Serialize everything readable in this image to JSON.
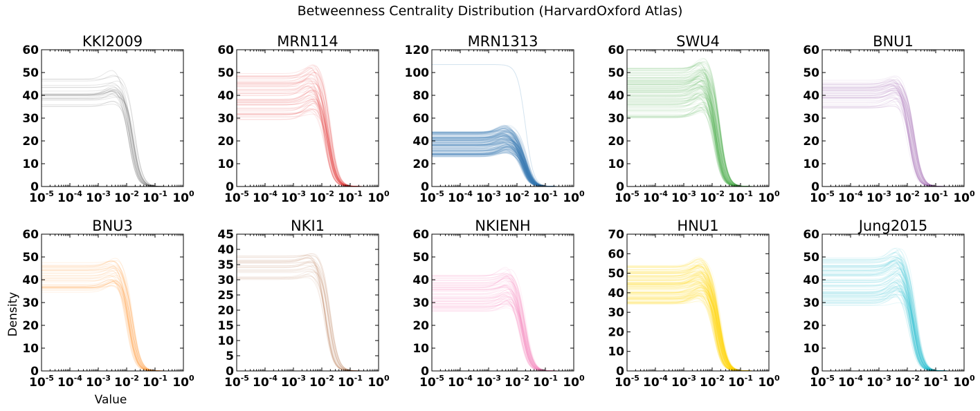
{
  "suptitle": "Betweenness Centrality Distribution (HarvardOxford Atlas)",
  "ylabel": "Density",
  "xlabel": "Value",
  "chart_data": [
    {
      "type": "line",
      "title": "KKI2009",
      "color": "#333333",
      "ylim": [
        0,
        60
      ],
      "yticks": [
        0,
        10,
        20,
        30,
        40,
        50,
        60
      ],
      "xscale": "log",
      "xlim": [
        1e-05,
        1
      ],
      "xtick_labels": [
        "10",
        "10",
        "10",
        "10",
        "10",
        "10"
      ],
      "xtick_exponents": [
        "-5",
        "-4",
        "-3",
        "-2",
        "-1",
        "0"
      ],
      "series_count": 24,
      "plateau_range": [
        34,
        48
      ],
      "peak_x": 0.004,
      "drop_x": 0.015,
      "opacity": 0.12,
      "outliers": []
    },
    {
      "type": "line",
      "title": "MRN114",
      "color": "#e41a1c",
      "ylim": [
        0,
        60
      ],
      "yticks": [
        0,
        10,
        20,
        30,
        40,
        50,
        60
      ],
      "xscale": "log",
      "xlim": [
        1e-05,
        1
      ],
      "xtick_labels": [
        "10",
        "10",
        "10",
        "10",
        "10",
        "10"
      ],
      "xtick_exponents": [
        "-5",
        "-4",
        "-3",
        "-2",
        "-1",
        "0"
      ],
      "series_count": 60,
      "plateau_range": [
        28,
        50
      ],
      "peak_x": 0.005,
      "drop_x": 0.016,
      "opacity": 0.1,
      "outliers": []
    },
    {
      "type": "line",
      "title": "MRN1313",
      "color": "#377eb8",
      "ylim": [
        0,
        120
      ],
      "yticks": [
        0,
        20,
        40,
        60,
        80,
        100,
        120
      ],
      "xscale": "log",
      "xlim": [
        1e-05,
        1
      ],
      "xtick_labels": [
        "10",
        "10",
        "10",
        "10",
        "10",
        "10"
      ],
      "xtick_exponents": [
        "-5",
        "-4",
        "-3",
        "-2",
        "-1",
        "0"
      ],
      "series_count": 180,
      "plateau_range": [
        26,
        48
      ],
      "peak_x": 0.004,
      "drop_x": 0.018,
      "opacity": 0.12,
      "outliers": [
        107
      ]
    },
    {
      "type": "line",
      "title": "SWU4",
      "color": "#4daf4a",
      "ylim": [
        0,
        60
      ],
      "yticks": [
        0,
        10,
        20,
        30,
        40,
        50,
        60
      ],
      "xscale": "log",
      "xlim": [
        1e-05,
        1
      ],
      "xtick_labels": [
        "10",
        "10",
        "10",
        "10",
        "10",
        "10"
      ],
      "xtick_exponents": [
        "-5",
        "-4",
        "-3",
        "-2",
        "-1",
        "0"
      ],
      "series_count": 120,
      "plateau_range": [
        30,
        52
      ],
      "peak_x": 0.005,
      "drop_x": 0.015,
      "opacity": 0.1,
      "outliers": []
    },
    {
      "type": "line",
      "title": "BNU1",
      "color": "#984ea3",
      "ylim": [
        0,
        60
      ],
      "yticks": [
        0,
        10,
        20,
        30,
        40,
        50,
        60
      ],
      "xscale": "log",
      "xlim": [
        1e-05,
        1
      ],
      "xtick_labels": [
        "10",
        "10",
        "10",
        "10",
        "10",
        "10"
      ],
      "xtick_exponents": [
        "-5",
        "-4",
        "-3",
        "-2",
        "-1",
        "0"
      ],
      "series_count": 50,
      "plateau_range": [
        34,
        47
      ],
      "peak_x": 0.004,
      "drop_x": 0.014,
      "opacity": 0.1,
      "outliers": []
    },
    {
      "type": "line",
      "title": "BNU3",
      "color": "#ff7f00",
      "ylim": [
        0,
        60
      ],
      "yticks": [
        0,
        10,
        20,
        30,
        40,
        50,
        60
      ],
      "xscale": "log",
      "xlim": [
        1e-05,
        1
      ],
      "xtick_labels": [
        "10",
        "10",
        "10",
        "10",
        "10",
        "10"
      ],
      "xtick_exponents": [
        "-5",
        "-4",
        "-3",
        "-2",
        "-1",
        "0"
      ],
      "series_count": 40,
      "plateau_range": [
        34,
        48
      ],
      "peak_x": 0.004,
      "drop_x": 0.013,
      "opacity": 0.1,
      "outliers": []
    },
    {
      "type": "line",
      "title": "NKI1",
      "color": "#a65628",
      "ylim": [
        0,
        45
      ],
      "yticks": [
        0,
        5,
        10,
        15,
        20,
        25,
        30,
        35,
        40,
        45
      ],
      "xscale": "log",
      "xlim": [
        1e-05,
        1
      ],
      "xtick_labels": [
        "10",
        "10",
        "10",
        "10",
        "10",
        "10"
      ],
      "xtick_exponents": [
        "-5",
        "-4",
        "-3",
        "-2",
        "-1",
        "0"
      ],
      "series_count": 28,
      "plateau_range": [
        30,
        38
      ],
      "peak_x": 0.005,
      "drop_x": 0.016,
      "opacity": 0.1,
      "outliers": []
    },
    {
      "type": "line",
      "title": "NKIENH",
      "color": "#f781bf",
      "ylim": [
        0,
        60
      ],
      "yticks": [
        0,
        10,
        20,
        30,
        40,
        50,
        60
      ],
      "xscale": "log",
      "xlim": [
        1e-05,
        1
      ],
      "xtick_labels": [
        "10",
        "10",
        "10",
        "10",
        "10",
        "10"
      ],
      "xtick_exponents": [
        "-5",
        "-4",
        "-3",
        "-2",
        "-1",
        "0"
      ],
      "series_count": 70,
      "plateau_range": [
        26,
        42
      ],
      "peak_x": 0.005,
      "drop_x": 0.016,
      "opacity": 0.12,
      "outliers": []
    },
    {
      "type": "line",
      "title": "HNU1",
      "color": "#ffd700",
      "ylim": [
        0,
        70
      ],
      "yticks": [
        0,
        10,
        20,
        30,
        40,
        50,
        60,
        70
      ],
      "xscale": "log",
      "xlim": [
        1e-05,
        1
      ],
      "xtick_labels": [
        "10",
        "10",
        "10",
        "10",
        "10",
        "10"
      ],
      "xtick_exponents": [
        "-5",
        "-4",
        "-3",
        "-2",
        "-1",
        "0"
      ],
      "series_count": 150,
      "plateau_range": [
        34,
        54
      ],
      "peak_x": 0.004,
      "drop_x": 0.015,
      "opacity": 0.1,
      "outliers": []
    },
    {
      "type": "line",
      "title": "Jung2015",
      "color": "#17becf",
      "ylim": [
        0,
        60
      ],
      "yticks": [
        0,
        10,
        20,
        30,
        40,
        50,
        60
      ],
      "xscale": "log",
      "xlim": [
        1e-05,
        1
      ],
      "xtick_labels": [
        "10",
        "10",
        "10",
        "10",
        "10",
        "10"
      ],
      "xtick_exponents": [
        "-5",
        "-4",
        "-3",
        "-2",
        "-1",
        "0"
      ],
      "series_count": 90,
      "plateau_range": [
        28,
        50
      ],
      "peak_x": 0.005,
      "drop_x": 0.016,
      "opacity": 0.1,
      "outliers": []
    }
  ]
}
